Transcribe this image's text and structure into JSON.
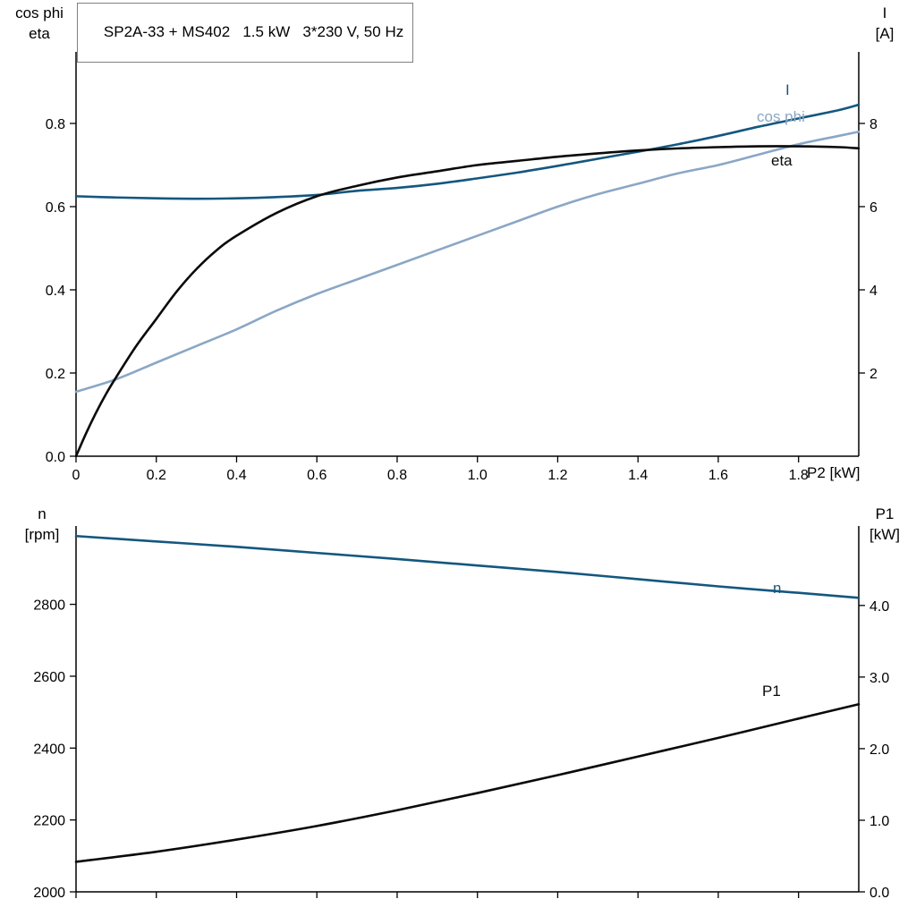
{
  "title": "SP2A-33 + MS402   1.5 kW   3*230 V, 50 Hz",
  "colors": {
    "dark_blue": "#14577f",
    "light_blue": "#8aa7c5",
    "black": "#0a0a0a",
    "axis": "#000000"
  },
  "chart_data": [
    {
      "id": "motor-electrical-curves",
      "type": "line",
      "x_axis": {
        "label": "P2 [kW]",
        "min": 0,
        "max": 1.95,
        "ticks": [
          0,
          0.2,
          0.4,
          0.6,
          0.8,
          1.0,
          1.2,
          1.4,
          1.6,
          1.8
        ],
        "tick_labels": [
          "0",
          "0.2",
          "0.4",
          "0.6",
          "0.8",
          "1.0",
          "1.2",
          "1.4",
          "1.6",
          "1.8"
        ]
      },
      "left_axis": {
        "label_lines": [
          "cos phi",
          "eta"
        ],
        "min": 0,
        "max": 0.972,
        "ticks": [
          0,
          0.2,
          0.4,
          0.6,
          0.8
        ],
        "tick_labels": [
          "0.0",
          "0.2",
          "0.4",
          "0.6",
          "0.8"
        ]
      },
      "right_axis": {
        "label_lines": [
          "I",
          "[A]"
        ],
        "min": 0,
        "max": 9.72,
        "ticks": [
          2,
          4,
          6,
          8
        ],
        "tick_labels": [
          "2",
          "4",
          "6",
          "8"
        ]
      },
      "series": [
        {
          "name": "I",
          "axis": "right",
          "color_key": "dark_blue",
          "points": [
            [
              0,
              6.25
            ],
            [
              0.1,
              6.22
            ],
            [
              0.2,
              6.2
            ],
            [
              0.3,
              6.19
            ],
            [
              0.4,
              6.2
            ],
            [
              0.5,
              6.23
            ],
            [
              0.6,
              6.28
            ],
            [
              0.7,
              6.38
            ],
            [
              0.8,
              6.45
            ],
            [
              0.9,
              6.55
            ],
            [
              1.0,
              6.68
            ],
            [
              1.1,
              6.82
            ],
            [
              1.2,
              6.98
            ],
            [
              1.3,
              7.15
            ],
            [
              1.4,
              7.32
            ],
            [
              1.5,
              7.5
            ],
            [
              1.6,
              7.7
            ],
            [
              1.7,
              7.92
            ],
            [
              1.8,
              8.12
            ],
            [
              1.9,
              8.32
            ],
            [
              1.95,
              8.45
            ]
          ]
        },
        {
          "name": "cos phi",
          "axis": "left",
          "color_key": "light_blue",
          "points": [
            [
              0,
              0.155
            ],
            [
              0.1,
              0.185
            ],
            [
              0.2,
              0.225
            ],
            [
              0.3,
              0.265
            ],
            [
              0.4,
              0.305
            ],
            [
              0.5,
              0.35
            ],
            [
              0.6,
              0.39
            ],
            [
              0.7,
              0.425
            ],
            [
              0.8,
              0.46
            ],
            [
              0.9,
              0.495
            ],
            [
              1.0,
              0.53
            ],
            [
              1.1,
              0.565
            ],
            [
              1.2,
              0.6
            ],
            [
              1.3,
              0.63
            ],
            [
              1.4,
              0.655
            ],
            [
              1.5,
              0.68
            ],
            [
              1.6,
              0.7
            ],
            [
              1.7,
              0.725
            ],
            [
              1.8,
              0.75
            ],
            [
              1.9,
              0.77
            ],
            [
              1.95,
              0.78
            ]
          ]
        },
        {
          "name": "eta",
          "axis": "left",
          "color_key": "black",
          "points": [
            [
              0,
              0
            ],
            [
              0.025,
              0.055
            ],
            [
              0.05,
              0.105
            ],
            [
              0.075,
              0.15
            ],
            [
              0.1,
              0.19
            ],
            [
              0.15,
              0.265
            ],
            [
              0.2,
              0.33
            ],
            [
              0.25,
              0.395
            ],
            [
              0.3,
              0.45
            ],
            [
              0.35,
              0.495
            ],
            [
              0.4,
              0.53
            ],
            [
              0.5,
              0.585
            ],
            [
              0.6,
              0.625
            ],
            [
              0.7,
              0.65
            ],
            [
              0.8,
              0.67
            ],
            [
              0.9,
              0.685
            ],
            [
              1.0,
              0.7
            ],
            [
              1.1,
              0.71
            ],
            [
              1.2,
              0.72
            ],
            [
              1.3,
              0.728
            ],
            [
              1.4,
              0.735
            ],
            [
              1.5,
              0.74
            ],
            [
              1.6,
              0.743
            ],
            [
              1.7,
              0.745
            ],
            [
              1.8,
              0.745
            ],
            [
              1.9,
              0.743
            ],
            [
              1.95,
              0.74
            ]
          ]
        }
      ]
    },
    {
      "id": "speed-power-curves",
      "type": "line",
      "x_axis": {
        "label": "",
        "min": 0,
        "max": 1.95,
        "ticks": [
          0,
          0.2,
          0.4,
          0.6,
          0.8,
          1.0,
          1.2,
          1.4,
          1.6,
          1.8
        ],
        "tick_labels": []
      },
      "left_axis": {
        "label_lines": [
          "n",
          "[rpm]"
        ],
        "min": 2000,
        "max": 3018,
        "ticks": [
          2000,
          2200,
          2400,
          2600,
          2800
        ],
        "tick_labels": [
          "2000",
          "2200",
          "2400",
          "2600",
          "2800"
        ]
      },
      "right_axis": {
        "label_lines": [
          "P1",
          "[kW]"
        ],
        "min": 0,
        "max": 5.11,
        "ticks": [
          0,
          1,
          2,
          3,
          4
        ],
        "tick_labels": [
          "0.0",
          "1.0",
          "2.0",
          "3.0",
          "4.0"
        ]
      },
      "series": [
        {
          "name": "n",
          "axis": "left",
          "color_key": "dark_blue",
          "points": [
            [
              0,
              2990
            ],
            [
              0.2,
              2975
            ],
            [
              0.4,
              2960
            ],
            [
              0.6,
              2943
            ],
            [
              0.8,
              2926
            ],
            [
              1.0,
              2908
            ],
            [
              1.2,
              2890
            ],
            [
              1.4,
              2870
            ],
            [
              1.6,
              2850
            ],
            [
              1.8,
              2832
            ],
            [
              1.95,
              2818
            ]
          ]
        },
        {
          "name": "P1",
          "axis": "right",
          "color_key": "black",
          "points": [
            [
              0,
              0.42
            ],
            [
              0.2,
              0.56
            ],
            [
              0.4,
              0.73
            ],
            [
              0.6,
              0.92
            ],
            [
              0.8,
              1.14
            ],
            [
              1.0,
              1.38
            ],
            [
              1.2,
              1.63
            ],
            [
              1.4,
              1.89
            ],
            [
              1.6,
              2.15
            ],
            [
              1.8,
              2.42
            ],
            [
              1.95,
              2.62
            ]
          ]
        }
      ]
    }
  ]
}
